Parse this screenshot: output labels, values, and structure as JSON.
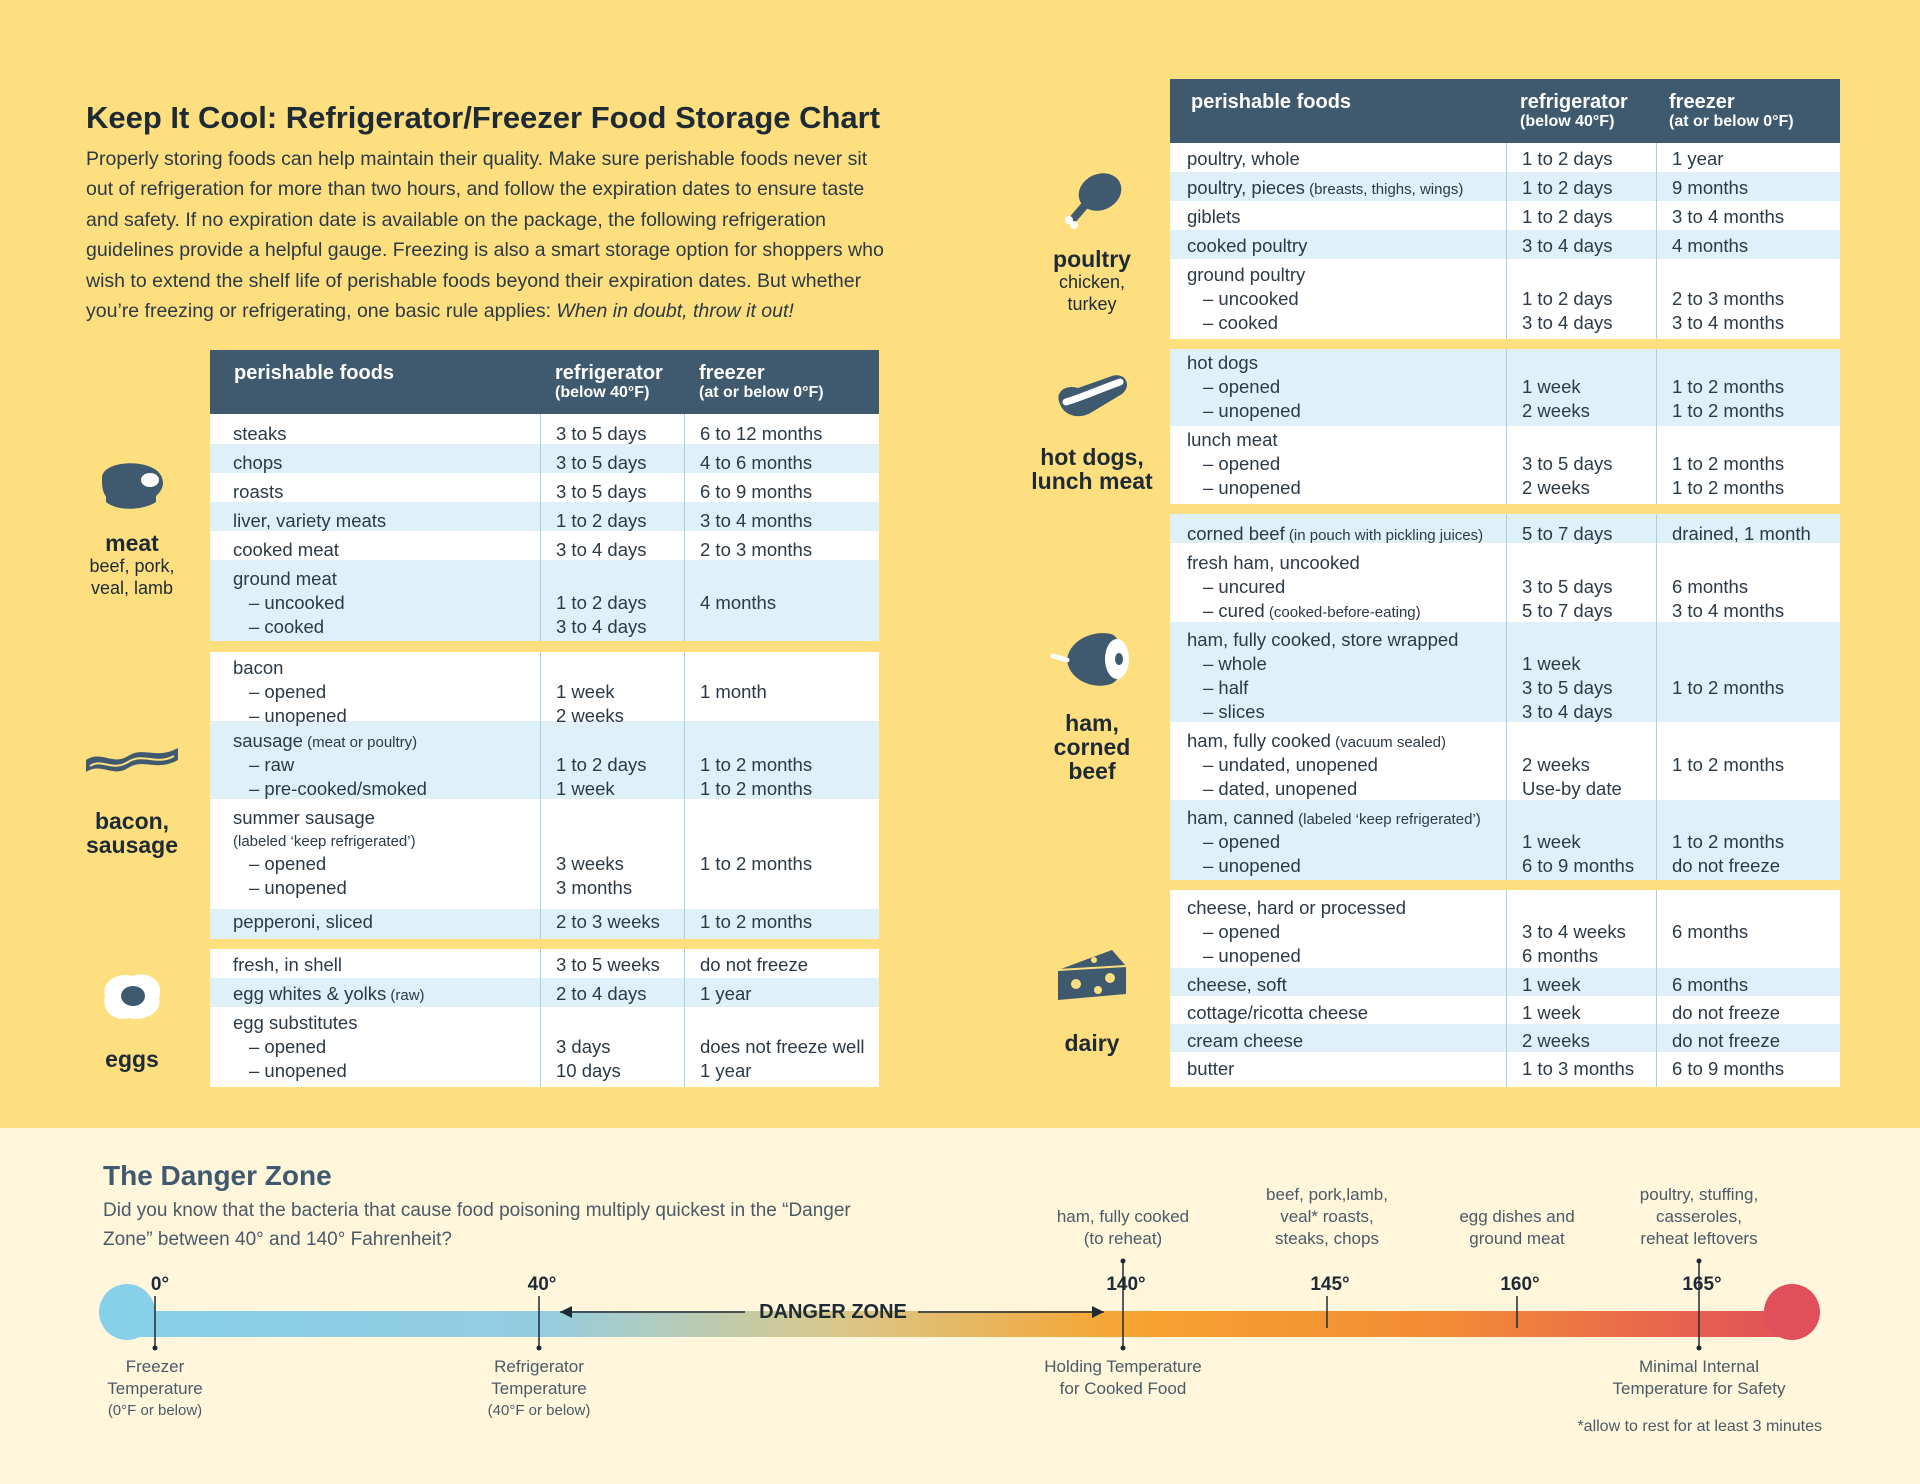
{
  "title": "Keep It Cool: Refrigerator/Freezer Food Storage Chart",
  "intro": "Properly storing foods can help maintain their quality. Make sure perishable foods never sit out of refrigeration for more than two hours, and follow the expiration dates to ensure taste and safety. If no expiration date is available on the package, the following refrigeration guidelines provide a helpful gauge. Freezing is also a smart storage option for shoppers who wish to extend the shelf life of perishable foods beyond their expiration dates. But whether you’re freezing or refrigerating, one basic rule applies: ",
  "intro_emphasis": "When in doubt, throw it out!",
  "headers": {
    "food": "perishable foods",
    "fridge": "refrigerator",
    "fridge_sub": "(below 40°F)",
    "freezer": "freezer",
    "freezer_sub": "(at or below 0°F)"
  },
  "categories": {
    "meat": {
      "name": "meat",
      "sub1": "beef, pork,",
      "sub2": "veal, lamb"
    },
    "bacon": {
      "name1": "bacon,",
      "name2": "sausage"
    },
    "eggs": {
      "name": "eggs"
    },
    "poultry": {
      "name": "poultry",
      "sub1": "chicken,",
      "sub2": "turkey"
    },
    "hotdogs": {
      "name1": "hot dogs,",
      "name2": "lunch meat"
    },
    "ham": {
      "name1": "ham,",
      "name2": "corned",
      "name3": "beef"
    },
    "dairy": {
      "name": "dairy"
    }
  },
  "left_table": {
    "meat": [
      [
        "steaks",
        "3 to 5 days",
        "6 to 12 months"
      ],
      [
        "chops",
        "3 to 5 days",
        "4 to 6 months"
      ],
      [
        "roasts",
        "3 to 5 days",
        "6 to 9 months"
      ],
      [
        "liver, variety meats",
        "1 to 2 days",
        "3 to 4 months"
      ],
      [
        "cooked meat",
        "3 to 4 days",
        "2 to 3 months"
      ],
      [
        "ground meat",
        "",
        ""
      ],
      [
        "– uncooked",
        "1 to 2 days",
        "4 months"
      ],
      [
        "– cooked",
        "3 to 4 days",
        ""
      ]
    ],
    "bacon": [
      [
        "bacon",
        "",
        ""
      ],
      [
        "– opened",
        "1 week",
        "1 month"
      ],
      [
        "– unopened",
        "2 weeks",
        ""
      ],
      [
        "sausage",
        "",
        ""
      ],
      [
        "– raw",
        "1 to 2 days",
        "1 to 2 months"
      ],
      [
        "– pre-cooked/smoked",
        "1 week",
        "1 to 2 months"
      ],
      [
        "summer sausage",
        "",
        ""
      ],
      [
        "(labeled ‘keep refrigerated’)",
        "",
        ""
      ],
      [
        "– opened",
        "3 weeks",
        "1 to 2 months"
      ],
      [
        "– unopened",
        "3 months",
        ""
      ],
      [
        "pepperoni, sliced",
        "2 to 3 weeks",
        "1 to 2 months"
      ]
    ],
    "sausage_note": "(meat or poultry)",
    "eggs": [
      [
        "fresh, in shell",
        "3 to 5 weeks",
        "do not freeze"
      ],
      [
        "egg whites & yolks",
        "2 to 4 days",
        "1 year"
      ],
      [
        "egg substitutes",
        "",
        ""
      ],
      [
        "– opened",
        "3 days",
        "does not freeze well"
      ],
      [
        "– unopened",
        "10 days",
        "1 year"
      ]
    ],
    "eggs_note": "(raw)"
  },
  "right_table": {
    "poultry": [
      [
        "poultry, whole",
        "1 to 2 days",
        "1 year"
      ],
      [
        "poultry, pieces",
        "1 to 2 days",
        "9 months"
      ],
      [
        "giblets",
        "1 to 2 days",
        "3 to 4 months"
      ],
      [
        "cooked poultry",
        "3 to 4 days",
        "4 months"
      ],
      [
        "ground poultry",
        "",
        ""
      ],
      [
        "– uncooked",
        "1 to 2 days",
        "2 to 3 months"
      ],
      [
        "– cooked",
        "3 to 4 days",
        "3 to 4 months"
      ]
    ],
    "pieces_note": "(breasts, thighs, wings)",
    "hotdogs": [
      [
        "hot dogs",
        "",
        ""
      ],
      [
        "– opened",
        "1 week",
        "1 to 2 months"
      ],
      [
        "– unopened",
        "2 weeks",
        "1 to 2 months"
      ],
      [
        "lunch meat",
        "",
        ""
      ],
      [
        "– opened",
        "3 to 5 days",
        "1 to 2 months"
      ],
      [
        "– unopened",
        "2 weeks",
        "1 to 2 months"
      ]
    ],
    "ham": [
      [
        "corned beef",
        "5 to 7 days",
        "drained, 1 month"
      ],
      [
        "fresh ham, uncooked",
        "",
        ""
      ],
      [
        "– uncured",
        "3 to 5 days",
        "6 months"
      ],
      [
        "– cured",
        "5 to 7 days",
        "3 to 4 months"
      ],
      [
        "ham, fully cooked, store wrapped",
        "",
        ""
      ],
      [
        "– whole",
        "1 week",
        ""
      ],
      [
        "– half",
        "3 to 5 days",
        "1 to 2 months"
      ],
      [
        "– slices",
        "3 to 4 days",
        ""
      ],
      [
        "ham, fully cooked",
        "",
        ""
      ],
      [
        "– undated, unopened",
        "2 weeks",
        "1 to 2 months"
      ],
      [
        "– dated, unopened",
        "Use-by date",
        ""
      ],
      [
        "ham, canned",
        "",
        ""
      ],
      [
        "– opened",
        "1 week",
        "1 to 2 months"
      ],
      [
        "– unopened",
        "6 to 9 months",
        "do not freeze"
      ]
    ],
    "corned_note": "(in pouch with pickling juices)",
    "cured_note": "(cooked-before-eating)",
    "vacuum_note": "(vacuum sealed)",
    "canned_note": "(labeled ‘keep refrigerated’)",
    "dairy": [
      [
        "cheese, hard or processed",
        "",
        ""
      ],
      [
        "– opened",
        "3 to 4 weeks",
        "6 months"
      ],
      [
        "– unopened",
        "6 months",
        ""
      ],
      [
        "cheese, soft",
        "1 week",
        "6 months"
      ],
      [
        "cottage/ricotta cheese",
        "1 week",
        "do not freeze"
      ],
      [
        "cream cheese",
        "2 weeks",
        "do not freeze"
      ],
      [
        "butter",
        "1 to 3 months",
        "6 to 9 months"
      ]
    ]
  },
  "danger": {
    "title": "The Danger Zone",
    "lead": "Did you know that the bacteria that cause food poisoning multiply quickest in the “Danger Zone” between 40° and 140° Fahrenheit?",
    "zone_label": "DANGER ZONE",
    "ticks": [
      "0°",
      "40°",
      "140°",
      "145°",
      "160°",
      "165°"
    ],
    "above": {
      "t140": [
        "ham, fully cooked",
        "(to reheat)"
      ],
      "t145": [
        "beef, pork,lamb,",
        "veal* roasts,",
        "steaks, chops"
      ],
      "t160": [
        "egg dishes and",
        "ground meat"
      ],
      "t165": [
        "poultry, stuffing,",
        "casseroles,",
        "reheat leftovers"
      ]
    },
    "below": {
      "t0": [
        "Freezer",
        "Temperature",
        "(0°F or below)"
      ],
      "t40": [
        "Refrigerator",
        "Temperature",
        "(40°F or below)"
      ],
      "t140": [
        "Holding Temperature",
        "for Cooked Food"
      ],
      "t165": [
        "Minimal Internal",
        "Temperature for Safety"
      ]
    },
    "footnote": "*allow to rest for at least 3 minutes"
  },
  "colors": {
    "background": "#fedf80",
    "header": "#3f5a6e",
    "alt_row": "#e0f0f8",
    "danger_bg": "#fff6dc"
  }
}
